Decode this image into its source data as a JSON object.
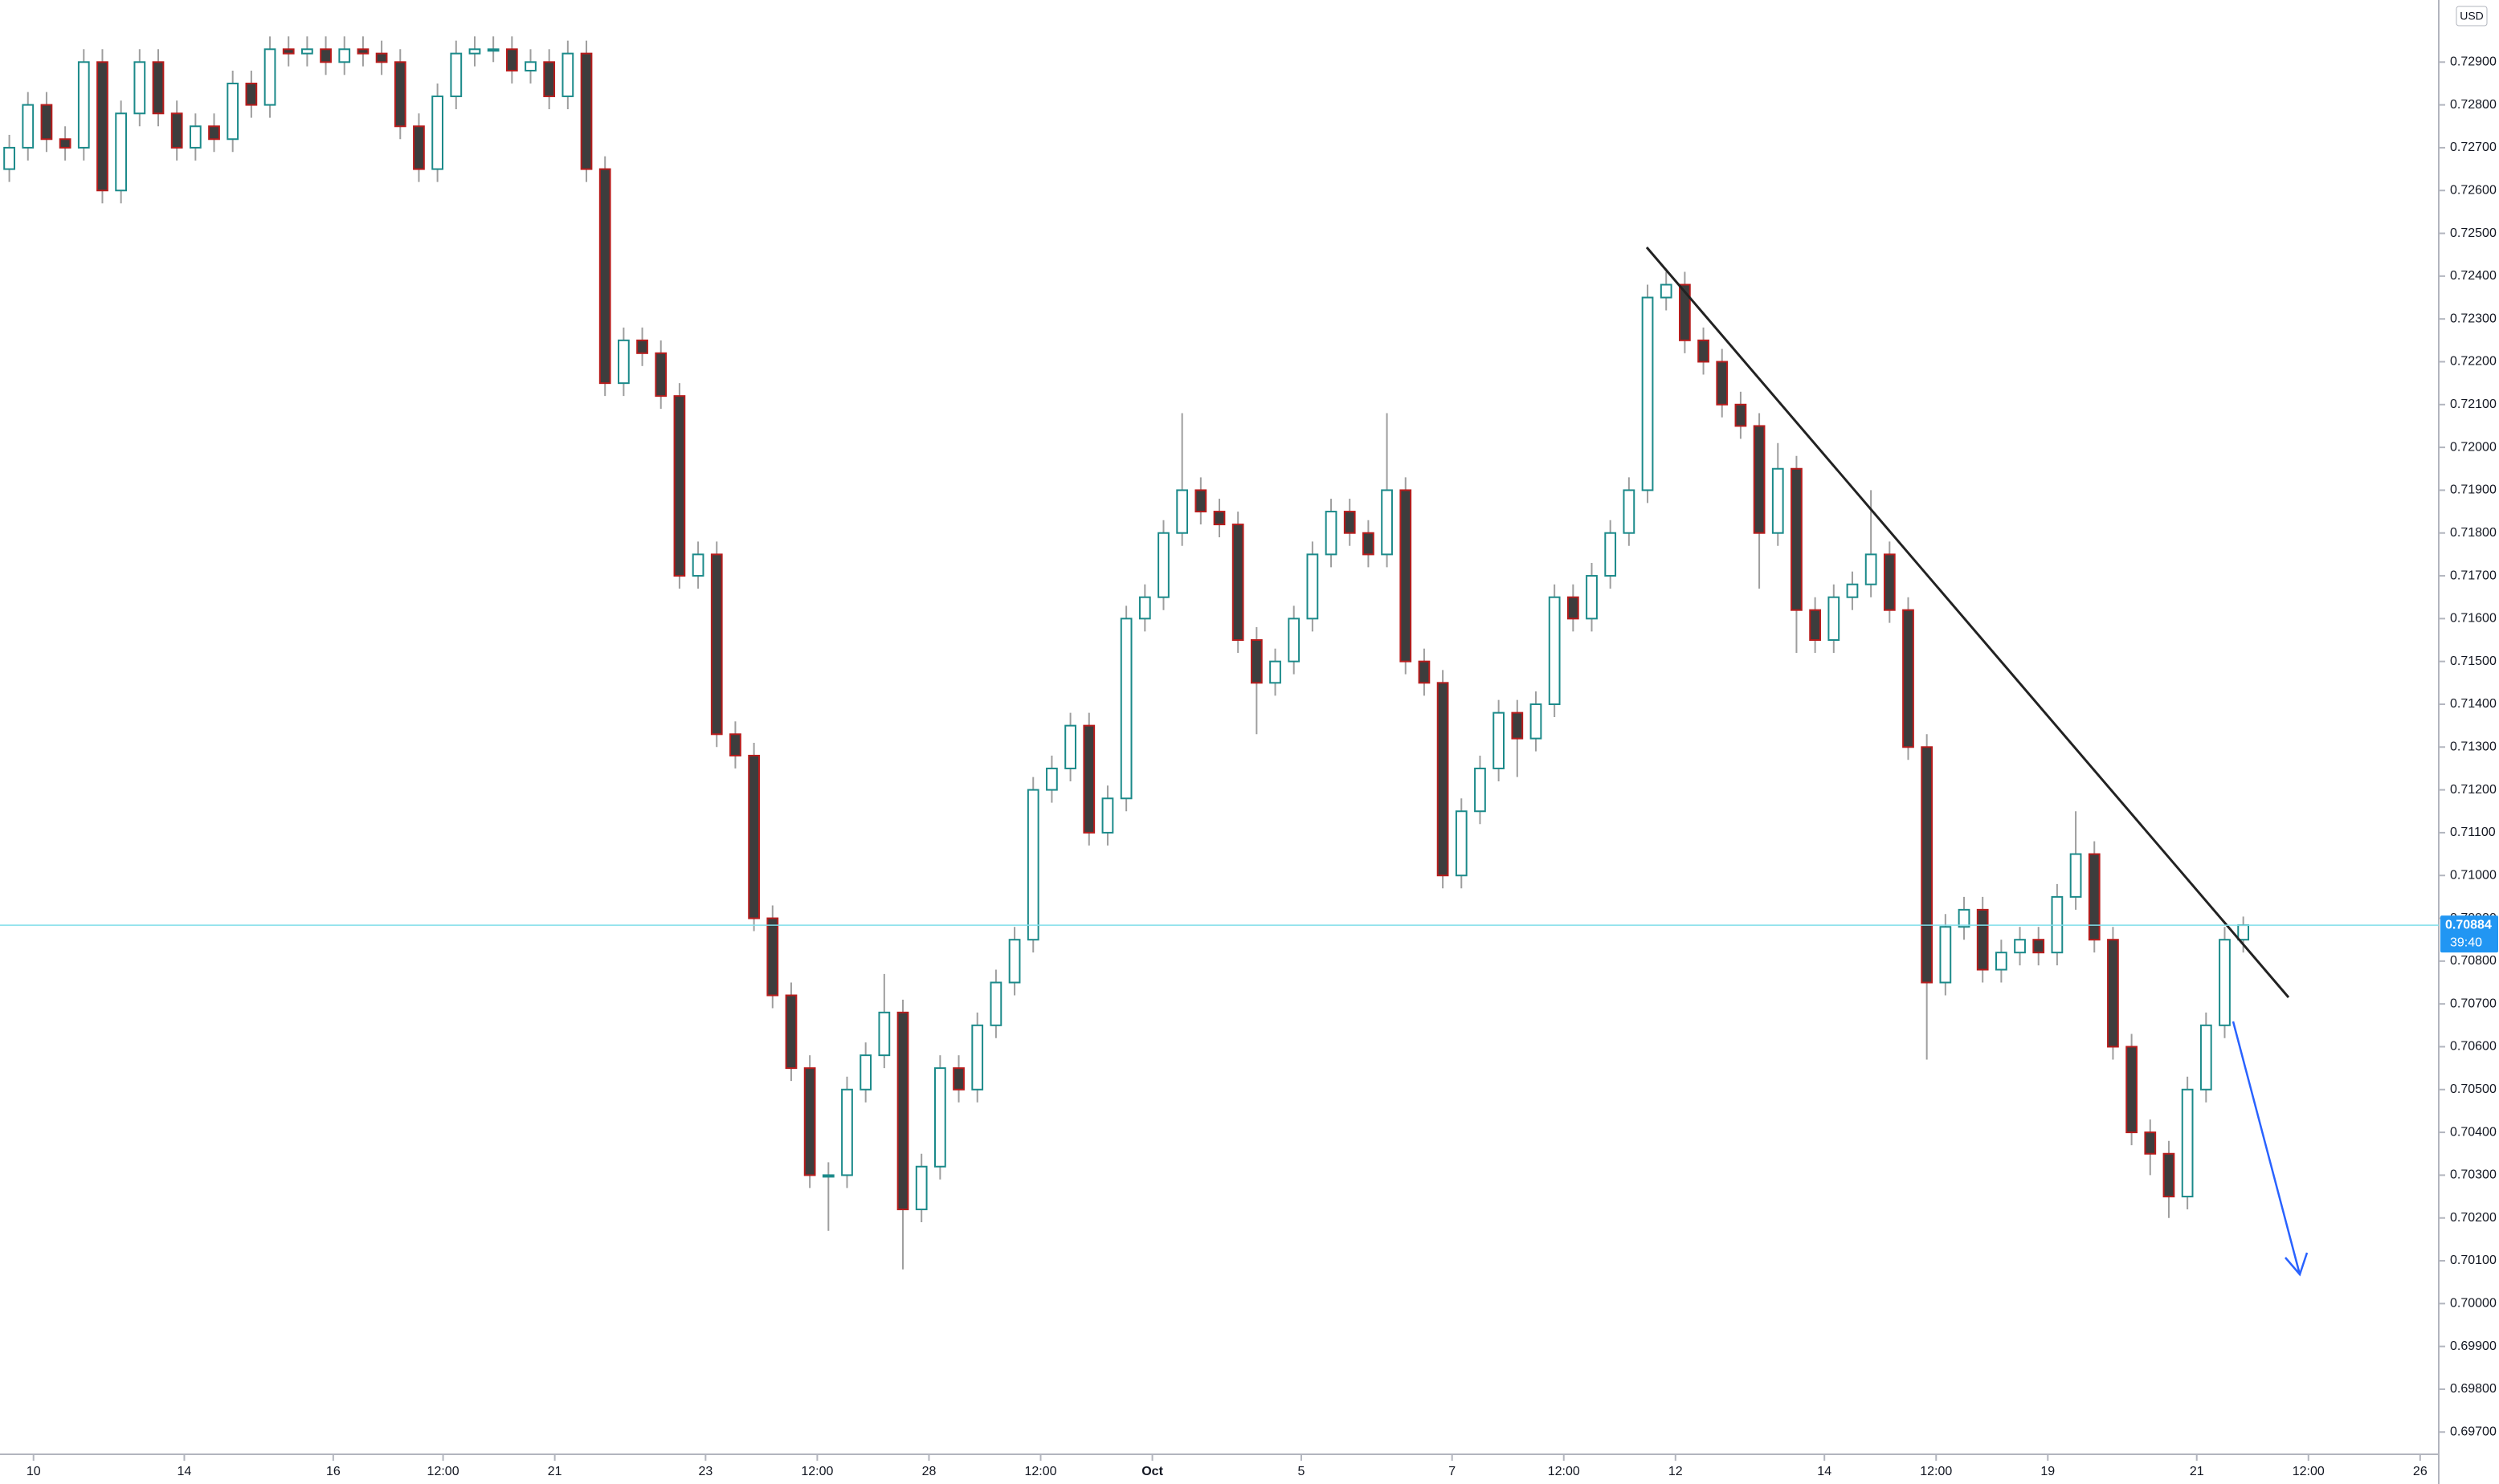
{
  "chart_data": {
    "type": "candlestick",
    "currency": "USD",
    "last_price": {
      "value": 0.70884,
      "label": "0.70884"
    },
    "countdown": "39:40",
    "up_color": "#ffffff",
    "up_edge": "#1b8a8a",
    "down_color": "#3d3d3d",
    "down_edge": "#b71c1c",
    "wick_color": "#9e9e9e",
    "last_color": "#2196f3",
    "open": [
      0.7265,
      0.727,
      0.728,
      0.7272,
      0.727,
      0.729,
      0.726,
      0.7278,
      0.729,
      0.7278,
      0.727,
      0.7275,
      0.7272,
      0.7285,
      0.728,
      0.7293,
      0.7292,
      0.7293,
      0.729,
      0.7293,
      0.7292,
      0.729,
      0.7275,
      0.7265,
      0.7282,
      0.7292,
      0.7293,
      0.7293,
      0.7288,
      0.729,
      0.7282,
      0.7292,
      0.7265,
      0.7215,
      0.7225,
      0.7222,
      0.7212,
      0.717,
      0.7175,
      0.7133,
      0.7128,
      0.709,
      0.7072,
      0.7055,
      0.703,
      0.703,
      0.705,
      0.7058,
      0.7068,
      0.7022,
      0.7032,
      0.7055,
      0.705,
      0.7065,
      0.7075,
      0.7085,
      0.712,
      0.7125,
      0.7135,
      0.711,
      0.7118,
      0.716,
      0.7165,
      0.718,
      0.719,
      0.7185,
      0.7182,
      0.7155,
      0.7145,
      0.715,
      0.716,
      0.7175,
      0.7185,
      0.718,
      0.7175,
      0.719,
      0.715,
      0.7145,
      0.71,
      0.7115,
      0.7125,
      0.7138,
      0.7132,
      0.714,
      0.7165,
      0.716,
      0.717,
      0.718,
      0.719,
      0.7235,
      0.7238,
      0.7225,
      0.722,
      0.721,
      0.7205,
      0.718,
      0.7195,
      0.7162,
      0.7155,
      0.7165,
      0.7168,
      0.7175,
      0.7162,
      0.713,
      0.7075,
      0.7088,
      0.7092,
      0.7078,
      0.7082,
      0.7085,
      0.7082,
      0.7095,
      0.7105,
      0.7085,
      0.706,
      0.704,
      0.7035,
      0.7025,
      0.705,
      0.7065,
      0.7085
    ],
    "high": [
      0.7273,
      0.7283,
      0.7283,
      0.7275,
      0.7293,
      0.7293,
      0.7281,
      0.7293,
      0.7293,
      0.7281,
      0.7278,
      0.7278,
      0.7288,
      0.7288,
      0.7296,
      0.7296,
      0.7296,
      0.7296,
      0.7296,
      0.7296,
      0.7295,
      0.7293,
      0.7278,
      0.7285,
      0.7295,
      0.7296,
      0.7296,
      0.7296,
      0.7293,
      0.7293,
      0.7295,
      0.7295,
      0.7268,
      0.7228,
      0.7228,
      0.7225,
      0.7215,
      0.7178,
      0.7178,
      0.7136,
      0.7131,
      0.7093,
      0.7075,
      0.7058,
      0.7033,
      0.7053,
      0.7061,
      0.7077,
      0.7071,
      0.7035,
      0.7058,
      0.7058,
      0.7068,
      0.7078,
      0.7088,
      0.7123,
      0.7128,
      0.7138,
      0.7138,
      0.7121,
      0.7163,
      0.7168,
      0.7183,
      0.7208,
      0.7193,
      0.7188,
      0.7185,
      0.7158,
      0.7153,
      0.7163,
      0.7178,
      0.7188,
      0.7188,
      0.7183,
      0.7208,
      0.7193,
      0.7153,
      0.7148,
      0.7118,
      0.7128,
      0.7141,
      0.7141,
      0.7143,
      0.7168,
      0.7168,
      0.7173,
      0.7183,
      0.7193,
      0.7238,
      0.7241,
      0.7241,
      0.7228,
      0.7223,
      0.7213,
      0.7208,
      0.7201,
      0.7198,
      0.7165,
      0.7168,
      0.7171,
      0.719,
      0.7178,
      0.7165,
      0.7133,
      0.7091,
      0.7095,
      0.7095,
      0.7085,
      0.7088,
      0.7088,
      0.7098,
      0.7115,
      0.7108,
      0.7088,
      0.7063,
      0.7043,
      0.7038,
      0.7053,
      0.7068,
      0.7088,
      0.70904
    ],
    "low": [
      0.7262,
      0.7267,
      0.7269,
      0.7267,
      0.7267,
      0.7257,
      0.7257,
      0.7275,
      0.7275,
      0.7267,
      0.7267,
      0.7269,
      0.7269,
      0.7277,
      0.7277,
      0.7289,
      0.7289,
      0.7287,
      0.7287,
      0.7289,
      0.7287,
      0.7272,
      0.7262,
      0.7262,
      0.7279,
      0.7289,
      0.729,
      0.7285,
      0.7285,
      0.7279,
      0.7279,
      0.7262,
      0.7212,
      0.7212,
      0.7219,
      0.7209,
      0.7167,
      0.7167,
      0.713,
      0.7125,
      0.7087,
      0.7069,
      0.7052,
      0.7027,
      0.7017,
      0.7027,
      0.7047,
      0.7055,
      0.7008,
      0.7019,
      0.7029,
      0.7047,
      0.7047,
      0.7062,
      0.7072,
      0.7082,
      0.7117,
      0.7122,
      0.7107,
      0.7107,
      0.7115,
      0.7157,
      0.7162,
      0.7177,
      0.7182,
      0.7179,
      0.7152,
      0.7133,
      0.7142,
      0.7147,
      0.7157,
      0.7172,
      0.7177,
      0.7172,
      0.7172,
      0.7147,
      0.7142,
      0.7097,
      0.7097,
      0.7112,
      0.7122,
      0.7123,
      0.7129,
      0.7137,
      0.7157,
      0.7157,
      0.7167,
      0.7177,
      0.7187,
      0.7232,
      0.7222,
      0.7217,
      0.7207,
      0.7202,
      0.7167,
      0.7177,
      0.7152,
      0.7152,
      0.7152,
      0.7162,
      0.7165,
      0.7159,
      0.7127,
      0.7057,
      0.7072,
      0.7085,
      0.7075,
      0.7075,
      0.7079,
      0.7079,
      0.7079,
      0.7092,
      0.7082,
      0.7057,
      0.7037,
      0.703,
      0.702,
      0.7022,
      0.7047,
      0.7062,
      0.7082
    ],
    "close": [
      0.727,
      0.728,
      0.7272,
      0.727,
      0.729,
      0.726,
      0.7278,
      0.729,
      0.7278,
      0.727,
      0.7275,
      0.7272,
      0.7285,
      0.728,
      0.7293,
      0.7292,
      0.7293,
      0.729,
      0.7293,
      0.7292,
      0.729,
      0.7275,
      0.7265,
      0.7282,
      0.7292,
      0.7293,
      0.7293,
      0.7288,
      0.729,
      0.7282,
      0.7292,
      0.7265,
      0.7215,
      0.7225,
      0.7222,
      0.7212,
      0.717,
      0.7175,
      0.7133,
      0.7128,
      0.709,
      0.7072,
      0.7055,
      0.703,
      0.703,
      0.705,
      0.7058,
      0.7068,
      0.7022,
      0.7032,
      0.7055,
      0.705,
      0.7065,
      0.7075,
      0.7085,
      0.712,
      0.7125,
      0.7135,
      0.711,
      0.7118,
      0.716,
      0.7165,
      0.718,
      0.719,
      0.7185,
      0.7182,
      0.7155,
      0.7145,
      0.715,
      0.716,
      0.7175,
      0.7185,
      0.718,
      0.7175,
      0.719,
      0.715,
      0.7145,
      0.71,
      0.7115,
      0.7125,
      0.7138,
      0.7132,
      0.714,
      0.7165,
      0.716,
      0.717,
      0.718,
      0.719,
      0.7235,
      0.7238,
      0.7225,
      0.722,
      0.721,
      0.7205,
      0.718,
      0.7195,
      0.7162,
      0.7155,
      0.7165,
      0.7168,
      0.7175,
      0.7162,
      0.713,
      0.7075,
      0.7088,
      0.7092,
      0.7078,
      0.7082,
      0.7085,
      0.7082,
      0.7095,
      0.7105,
      0.7085,
      0.706,
      0.704,
      0.7035,
      0.7025,
      0.705,
      0.7065,
      0.7085,
      0.70884
    ],
    "xlim": [
      0,
      131
    ],
    "xticks": [
      {
        "value": 1.8,
        "label": "10"
      },
      {
        "value": 9.9,
        "label": "14"
      },
      {
        "value": 17.9,
        "label": "16"
      },
      {
        "value": 23.8,
        "label": "12:00"
      },
      {
        "value": 29.8,
        "label": "21"
      },
      {
        "value": 37.9,
        "label": "23"
      },
      {
        "value": 43.9,
        "label": "12:00"
      },
      {
        "value": 49.9,
        "label": "28"
      },
      {
        "value": 55.9,
        "label": "12:00"
      },
      {
        "value": 61.9,
        "label": "Oct"
      },
      {
        "value": 69.9,
        "label": "5"
      },
      {
        "value": 78,
        "label": "7"
      },
      {
        "value": 84,
        "label": "12:00"
      },
      {
        "value": 90,
        "label": "12"
      },
      {
        "value": 98,
        "label": "14"
      },
      {
        "value": 104,
        "label": "12:00"
      },
      {
        "value": 110,
        "label": "19"
      },
      {
        "value": 118,
        "label": "21"
      },
      {
        "value": 124,
        "label": "12:00"
      },
      {
        "value": 130,
        "label": "26"
      }
    ],
    "ylim": [
      0.69648,
      0.73045
    ],
    "yticks": [
      {
        "value": 0.697,
        "label": "0.69700"
      },
      {
        "value": 0.698,
        "label": "0.69800"
      },
      {
        "value": 0.699,
        "label": "0.69900"
      },
      {
        "value": 0.7,
        "label": "0.70000"
      },
      {
        "value": 0.701,
        "label": "0.70100"
      },
      {
        "value": 0.702,
        "label": "0.70200"
      },
      {
        "value": 0.703,
        "label": "0.70300"
      },
      {
        "value": 0.704,
        "label": "0.70400"
      },
      {
        "value": 0.705,
        "label": "0.70500"
      },
      {
        "value": 0.706,
        "label": "0.70600"
      },
      {
        "value": 0.707,
        "label": "0.70700"
      },
      {
        "value": 0.708,
        "label": "0.70800"
      },
      {
        "value": 0.709,
        "label": "0.70900"
      },
      {
        "value": 0.71,
        "label": "0.71000"
      },
      {
        "value": 0.711,
        "label": "0.71100"
      },
      {
        "value": 0.712,
        "label": "0.71200"
      },
      {
        "value": 0.713,
        "label": "0.71300"
      },
      {
        "value": 0.714,
        "label": "0.71400"
      },
      {
        "value": 0.715,
        "label": "0.71500"
      },
      {
        "value": 0.716,
        "label": "0.71600"
      },
      {
        "value": 0.717,
        "label": "0.71700"
      },
      {
        "value": 0.718,
        "label": "0.71800"
      },
      {
        "value": 0.719,
        "label": "0.71900"
      },
      {
        "value": 0.72,
        "label": "0.72000"
      },
      {
        "value": 0.721,
        "label": "0.72100"
      },
      {
        "value": 0.722,
        "label": "0.72200"
      },
      {
        "value": 0.723,
        "label": "0.72300"
      },
      {
        "value": 0.724,
        "label": "0.72400"
      },
      {
        "value": 0.725,
        "label": "0.72500"
      },
      {
        "value": 0.726,
        "label": "0.72600"
      },
      {
        "value": 0.727,
        "label": "0.72700"
      },
      {
        "value": 0.728,
        "label": "0.72800"
      },
      {
        "value": 0.729,
        "label": "0.72900"
      }
    ]
  }
}
